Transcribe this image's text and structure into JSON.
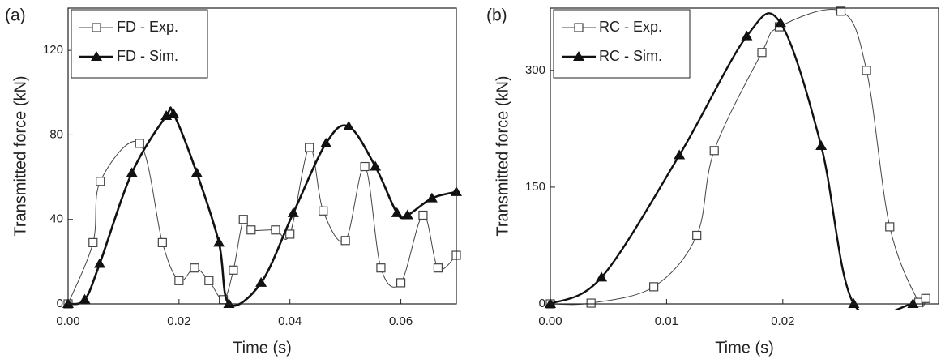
{
  "chart_data": [
    {
      "type": "line",
      "panel_label": "(a)",
      "x_label": "Time (s)",
      "y_label": "Transmitted force (kN)",
      "xlim": [
        0,
        0.07
      ],
      "ylim": [
        0,
        140
      ],
      "xticks": [
        {
          "value": 0,
          "label": "0.00"
        },
        {
          "value": 0.02,
          "label": "0.02"
        },
        {
          "value": 0.04,
          "label": "0.04"
        },
        {
          "value": 0.06,
          "label": "0.06"
        }
      ],
      "yticks": [
        0,
        40,
        80,
        120
      ],
      "legend": "upper left",
      "series": [
        {
          "name": "FD - Exp.",
          "color": "#444444",
          "marker": "square",
          "linewidth": 1,
          "x": [
            0,
            0.0045,
            0.0058,
            0.0129,
            0.017,
            0.02,
            0.0228,
            0.0254,
            0.028,
            0.0298,
            0.0316,
            0.033,
            0.0374,
            0.04,
            0.0435,
            0.046,
            0.05,
            0.0535,
            0.0564,
            0.06,
            0.064,
            0.0667,
            0.07
          ],
          "values": [
            0,
            29,
            58,
            76,
            29,
            11,
            17,
            11,
            2,
            16,
            40,
            35,
            35,
            33,
            74,
            44,
            30,
            65,
            17,
            10,
            42,
            17,
            23
          ]
        },
        {
          "name": "FD - Sim.",
          "color": "#111111",
          "marker": "triangle",
          "linewidth": 2.6,
          "x": [
            0,
            0.003,
            0.0057,
            0.0115,
            0.0177,
            0.019,
            0.0232,
            0.0272,
            0.029,
            0.0348,
            0.0406,
            0.0465,
            0.0506,
            0.0554,
            0.0593,
            0.0612,
            0.0656,
            0.07
          ],
          "values": [
            0,
            2,
            19,
            62,
            89,
            90,
            62,
            29,
            0,
            10,
            43,
            76,
            84,
            65,
            43,
            42,
            50,
            53
          ]
        }
      ]
    },
    {
      "type": "line",
      "panel_label": "(b)",
      "x_label": "Time (s)",
      "y_label": "Transmitted force (kN)",
      "xlim": [
        0,
        0.0334
      ],
      "ylim": [
        0,
        380
      ],
      "xticks": [
        {
          "value": 0,
          "label": "0.00"
        },
        {
          "value": 0.01,
          "label": "0.01"
        },
        {
          "value": 0.02,
          "label": "0.02"
        }
      ],
      "yticks": [
        0,
        150,
        300
      ],
      "legend": "upper left",
      "series": [
        {
          "name": "RC - Exp.",
          "color": "#444444",
          "marker": "square",
          "linewidth": 1,
          "x": [
            0,
            0.0035,
            0.0089,
            0.0126,
            0.0141,
            0.0182,
            0.0197,
            0.025,
            0.0272,
            0.0292,
            0.0317,
            0.0323
          ],
          "values": [
            0,
            1,
            22,
            88,
            197,
            323,
            356,
            376,
            300,
            99,
            2,
            7
          ]
        },
        {
          "name": "RC - Sim.",
          "color": "#111111",
          "marker": "triangle",
          "linewidth": 2.4,
          "x": [
            0,
            0.0044,
            0.0111,
            0.0169,
            0.0198,
            0.0233,
            0.0261,
            0.0312
          ],
          "values": [
            0,
            34,
            191,
            344,
            361,
            203,
            0,
            0
          ]
        }
      ]
    }
  ]
}
